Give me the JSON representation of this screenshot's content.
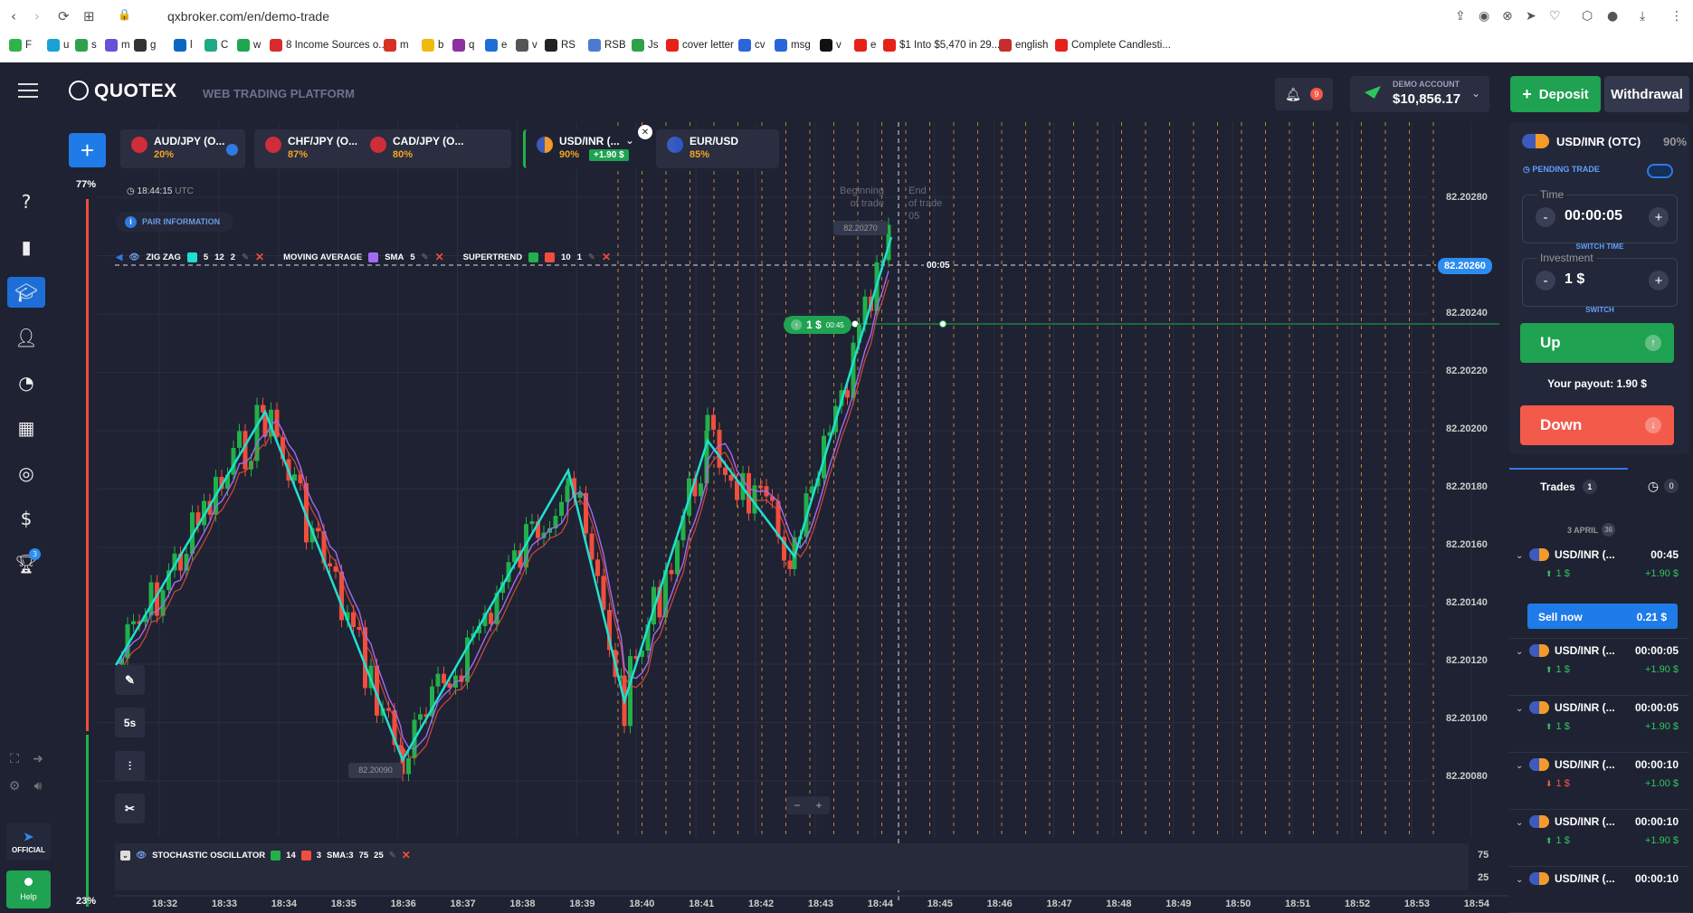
{
  "browser": {
    "url": "qxbroker.com/en/demo-trade",
    "bookmarks": [
      "F",
      "u",
      "s",
      "m",
      "g",
      "l",
      "C",
      "w",
      "8 Income Sources o...",
      "m",
      "b",
      "q",
      "e",
      "v",
      "RS",
      "RSB",
      "Js",
      "cover letter",
      "cv",
      "msg",
      "v",
      "e",
      "$1 Into $5,470 in 29...",
      "english",
      "Complete Candlesti..."
    ]
  },
  "app": {
    "logo": "QUOTEX",
    "platform": "WEB TRADING PLATFORM",
    "notifications": "9",
    "account_type": "DEMO ACCOUNT",
    "balance": "$10,856.17",
    "deposit": "Deposit",
    "withdrawal": "Withdrawal"
  },
  "sidebar": {
    "official": "OFFICIAL",
    "help": "Help",
    "badge": "3"
  },
  "assets": [
    {
      "name": "AUD/JPY (O...",
      "pct": "20%"
    },
    {
      "name": "CHF/JPY (O...",
      "pct": "87%"
    },
    {
      "name": "CAD/JPY (O...",
      "pct": "80%"
    },
    {
      "name": "USD/INR (...",
      "pct": "90%",
      "profit": "+1.90 $"
    },
    {
      "name": "EUR/USD",
      "pct": "85%"
    }
  ],
  "chart": {
    "sentiment_top": "77%",
    "sentiment_bottom": "23%",
    "time": "18:44:15",
    "tz": "UTC",
    "pair_info": "PAIR INFORMATION",
    "indicators": {
      "zigzag": "ZIG ZAG",
      "zz1": "5",
      "zz2": "12",
      "zz3": "2",
      "ma": "MOVING AVERAGE",
      "ma_type": "SMA",
      "ma_period": "5",
      "st": "SUPERTREND",
      "st1": "10",
      "st2": "1"
    },
    "price_levels": [
      "82.20280",
      "82.20260",
      "82.20240",
      "82.20220",
      "82.20200",
      "82.20180",
      "82.20160",
      "82.20140",
      "82.20120",
      "82.20100",
      "82.20080"
    ],
    "current_price": "82.20260",
    "high_tag": "82.20270",
    "low_tag": "82.20090",
    "begin_label_1": "Beginning",
    "begin_label_2": "of trade",
    "end_label_1": "End",
    "end_label_2": "of trade",
    "end_label_3": "05",
    "expiry": "00:05",
    "trade_tag_amount": "1 $",
    "trade_tag_time": "00:45",
    "timeframe": "5s",
    "time_labels": [
      "18:32",
      "18:33",
      "18:34",
      "18:35",
      "18:36",
      "18:37",
      "18:38",
      "18:39",
      "18:40",
      "18:41",
      "18:42",
      "18:43",
      "18:44",
      "18:45",
      "18:46",
      "18:47",
      "18:48",
      "18:49",
      "18:50",
      "18:51",
      "18:52",
      "18:53",
      "18:54"
    ],
    "oscillator": {
      "name": "STOCHASTIC OSCILLATOR",
      "k": "14",
      "d": "3",
      "sma": "SMA:3",
      "hi": "75",
      "lo": "25"
    },
    "colors": {
      "zigzag": "#1fe0d0",
      "sma": "#a36bf0",
      "up": "#22b04b",
      "down": "#f04e3e",
      "grid_orange": "#e8a032"
    }
  },
  "panel": {
    "pair": "USD/INR (OTC)",
    "pct": "90%",
    "pending": "PENDING TRADE",
    "time_title": "Time",
    "time_value": "00:00:05",
    "switch_time": "SWITCH TIME",
    "investment_title": "Investment",
    "investment_value": "1 $",
    "switch": "SWITCH",
    "up": "Up",
    "payout": "Your payout: 1.90 $",
    "down": "Down",
    "tab_trades": "Trades",
    "tab_trades_count": "1",
    "tab_hist_count": "0",
    "date": "3 APRIL",
    "date_count": "36",
    "sell_now": "Sell now",
    "sell_value": "0.21 $",
    "trades": [
      {
        "pair": "USD/INR (...",
        "time": "00:45",
        "amount": "1 $",
        "profit": "+1.90 $",
        "dir": "up"
      },
      {
        "pair": "USD/INR (...",
        "time": "00:00:05",
        "amount": "1 $",
        "profit": "+1.90 $",
        "dir": "up"
      },
      {
        "pair": "USD/INR (...",
        "time": "00:00:05",
        "amount": "1 $",
        "profit": "+1.90 $",
        "dir": "up"
      },
      {
        "pair": "USD/INR (...",
        "time": "00:00:10",
        "amount": "1 $",
        "profit": "+1.00 $",
        "dir": "down"
      },
      {
        "pair": "USD/INR (...",
        "time": "00:00:10",
        "amount": "1 $",
        "profit": "+1.90 $",
        "dir": "up"
      },
      {
        "pair": "USD/INR (...",
        "time": "00:00:10",
        "amount": "",
        "profit": "",
        "dir": "up"
      }
    ]
  }
}
